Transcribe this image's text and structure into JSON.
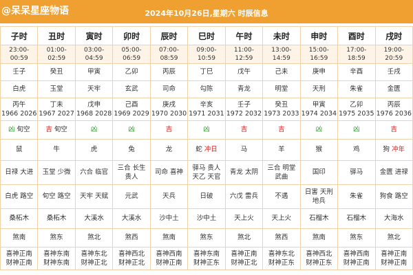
{
  "header": {
    "watermark": "@呆呆星座物语",
    "title": "2024年10月26日,星期六 时辰信息"
  },
  "table": {
    "columns": [
      "子时",
      "丑时",
      "寅时",
      "卯时",
      "辰时",
      "巳时",
      "午时",
      "未时",
      "申时",
      "酉时",
      "戌时"
    ],
    "rows": [
      {
        "kind": "times",
        "cells": [
          [
            "23:00-00:59"
          ],
          [
            "01:00-02:59"
          ],
          [
            "03:00-04:59"
          ],
          [
            "05:00-06:59"
          ],
          [
            "07:00-08:59"
          ],
          [
            "09:00-10:59"
          ],
          [
            "11:00-12:59"
          ],
          [
            "13:00-14:59"
          ],
          [
            "15:00-16:59"
          ],
          [
            "17:00-18:59"
          ],
          [
            "19:00-20:59"
          ]
        ],
        "height": 20
      },
      {
        "cells": [
          [
            "壬子"
          ],
          [
            "癸丑"
          ],
          [
            "甲寅"
          ],
          [
            "乙卯"
          ],
          [
            "丙辰"
          ],
          [
            "丁巳"
          ],
          [
            "戊午"
          ],
          [
            "己未"
          ],
          [
            "庚申"
          ],
          [
            "辛酉"
          ],
          [
            "壬戌"
          ]
        ],
        "height": 22
      },
      {
        "cells": [
          [
            "白虎"
          ],
          [
            "玉堂"
          ],
          [
            "天牢"
          ],
          [
            "玄武"
          ],
          [
            "司命"
          ],
          [
            "勾陈"
          ],
          [
            "青龙"
          ],
          [
            "明堂"
          ],
          [
            "天刑"
          ],
          [
            "朱雀"
          ],
          [
            "金匮"
          ]
        ],
        "height": 22
      },
      {
        "cells": [
          [
            "丙午",
            "1966 2026"
          ],
          [
            "丁未",
            "1967 2027"
          ],
          [
            "戊申",
            "1968 2028"
          ],
          [
            "己酉",
            "1969 2029"
          ],
          [
            "庚戌",
            "1970 2030"
          ],
          [
            "辛亥",
            "1971 2031"
          ],
          [
            "壬子",
            "1972 2032"
          ],
          [
            "癸丑",
            "1973 2033"
          ],
          [
            "甲寅",
            "1974 2034"
          ],
          [
            "乙卯",
            "1975 2035"
          ],
          [
            "丙辰",
            "1976 2036"
          ]
        ],
        "height": 30
      },
      {
        "cells": [
          [
            {
              "text": "凶",
              "color": "#2e9a2e"
            },
            "旬空"
          ],
          [
            {
              "text": "吉",
              "color": "#d62020"
            },
            "旬空"
          ],
          [
            {
              "text": "凶",
              "color": "#2e9a2e"
            }
          ],
          [
            {
              "text": "凶",
              "color": "#2e9a2e"
            }
          ],
          [
            {
              "text": "吉",
              "color": "#d62020"
            }
          ],
          [
            {
              "text": "凶",
              "color": "#2e9a2e"
            }
          ],
          [
            {
              "text": "吉",
              "color": "#d62020"
            }
          ],
          [
            {
              "text": "吉",
              "color": "#d62020"
            }
          ],
          [
            {
              "text": "凶",
              "color": "#2e9a2e"
            }
          ],
          [
            {
              "text": "凶",
              "color": "#2e9a2e"
            }
          ],
          [
            {
              "text": "吉",
              "color": "#d62020"
            }
          ]
        ],
        "height": 24
      },
      {
        "cells": [
          [
            "鼠"
          ],
          [
            "牛"
          ],
          [
            "虎"
          ],
          [
            "兔"
          ],
          [
            "龙"
          ],
          [
            "蛇",
            {
              "text": "冲日",
              "color": "#d62020"
            }
          ],
          [
            "马"
          ],
          [
            "羊"
          ],
          [
            "猴"
          ],
          [
            "鸡"
          ],
          [
            "狗",
            {
              "text": "冲年",
              "color": "#d62020"
            }
          ]
        ],
        "height": 28
      },
      {
        "cells": [
          [
            "日禄",
            "大进"
          ],
          [
            "玉堂",
            "少微"
          ],
          [
            "六合",
            "临官"
          ],
          [
            "三合",
            "长生",
            "贵人"
          ],
          [
            "司命",
            "喜神"
          ],
          [
            "驿马",
            "贵人",
            "天乙",
            "天官"
          ],
          [
            "青龙",
            "太阴"
          ],
          [
            "三合",
            "明堂",
            "武曲"
          ],
          [
            "国印"
          ],
          [
            "驿马"
          ],
          [
            "金匮",
            "进禄"
          ]
        ],
        "height": 32
      },
      {
        "cells": [
          [
            "白虎",
            "路空"
          ],
          [
            "旬空",
            "路空"
          ],
          [
            "天牢",
            "天赋"
          ],
          [
            "元武"
          ],
          [
            "天兵"
          ],
          [
            "日破"
          ],
          [
            "六戊",
            "雷兵"
          ],
          [
            "不遇"
          ],
          [
            "日害",
            "天刑",
            "地兵"
          ],
          [
            "朱雀"
          ],
          [
            "狗食",
            "路空"
          ]
        ],
        "height": 32
      },
      {
        "cells": [
          [
            "桑柘木"
          ],
          [
            "桑柘木"
          ],
          [
            "大溪水"
          ],
          [
            "大溪水"
          ],
          [
            "沙中土"
          ],
          [
            "沙中土"
          ],
          [
            "天上火"
          ],
          [
            "天上火"
          ],
          [
            "石榴木"
          ],
          [
            "石榴木"
          ],
          [
            "大海水"
          ]
        ],
        "height": 26
      },
      {
        "cells": [
          [
            "煞南"
          ],
          [
            "煞东"
          ],
          [
            "煞北"
          ],
          [
            "煞西"
          ],
          [
            "煞南"
          ],
          [
            "煞东"
          ],
          [
            "煞北"
          ],
          [
            "煞西"
          ],
          [
            "煞南"
          ],
          [
            "煞东"
          ],
          [
            "煞北"
          ]
        ],
        "height": 24
      },
      {
        "cells": [
          [
            "喜神正南",
            "财神正南"
          ],
          [
            "喜神东南",
            "财神东南"
          ],
          [
            "喜神东北",
            "财神正北"
          ],
          [
            "喜神西北",
            "财神正北"
          ],
          [
            "喜神西南",
            "财神正南"
          ],
          [
            "喜神东南",
            "财神正东"
          ],
          [
            "喜神正南",
            "财神正北"
          ],
          [
            "喜神东北",
            "财神正东"
          ],
          [
            "喜神西北",
            "财神正东"
          ],
          [
            "喜神西南",
            "财神正南"
          ],
          [
            "喜神正南",
            "财神正南"
          ]
        ],
        "height": 30
      }
    ]
  }
}
